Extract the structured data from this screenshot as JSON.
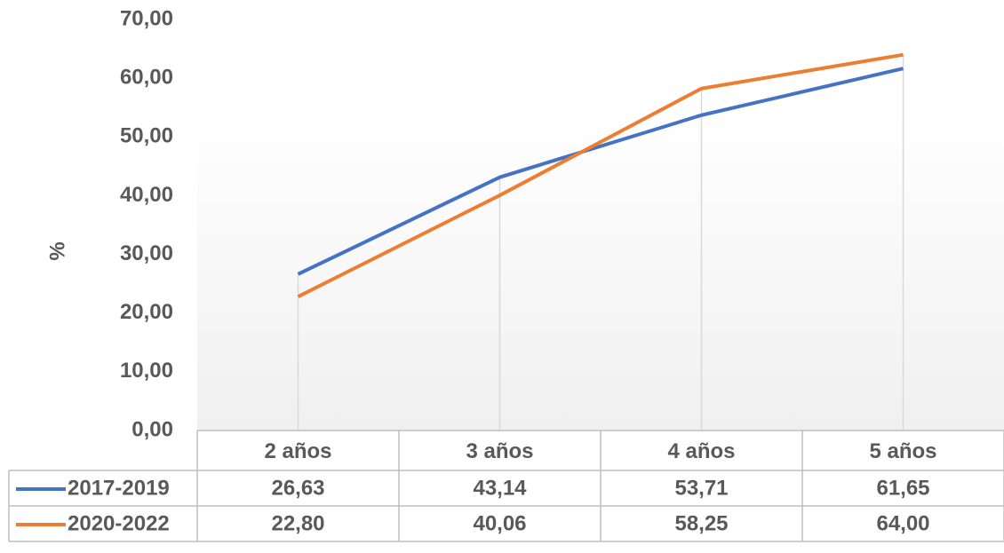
{
  "chart_data": {
    "type": "line",
    "y_label": "%",
    "categories": [
      "2 años",
      "3 años",
      "4 años",
      "5 años"
    ],
    "series": [
      {
        "name": "2017-2019",
        "color": "#4472c4",
        "values": [
          26.63,
          43.14,
          53.71,
          61.65
        ],
        "value_labels": [
          "26,63",
          "43,14",
          "53,71",
          "61,65"
        ]
      },
      {
        "name": "2020-2022",
        "color": "#ed7d31",
        "values": [
          22.8,
          40.06,
          58.25,
          64.0
        ],
        "value_labels": [
          "22,80",
          "40,06",
          "58,25",
          "64,00"
        ]
      }
    ],
    "ylim": [
      0,
      70
    ],
    "yticks": [
      {
        "value": 0,
        "label": "0,00"
      },
      {
        "value": 10,
        "label": "10,00"
      },
      {
        "value": 20,
        "label": "20,00"
      },
      {
        "value": 30,
        "label": "30,00"
      },
      {
        "value": 40,
        "label": "40,00"
      },
      {
        "value": 50,
        "label": "50,00"
      },
      {
        "value": 60,
        "label": "60,00"
      },
      {
        "value": 70,
        "label": "70,00"
      }
    ],
    "drop_lines": true,
    "data_table": true
  }
}
